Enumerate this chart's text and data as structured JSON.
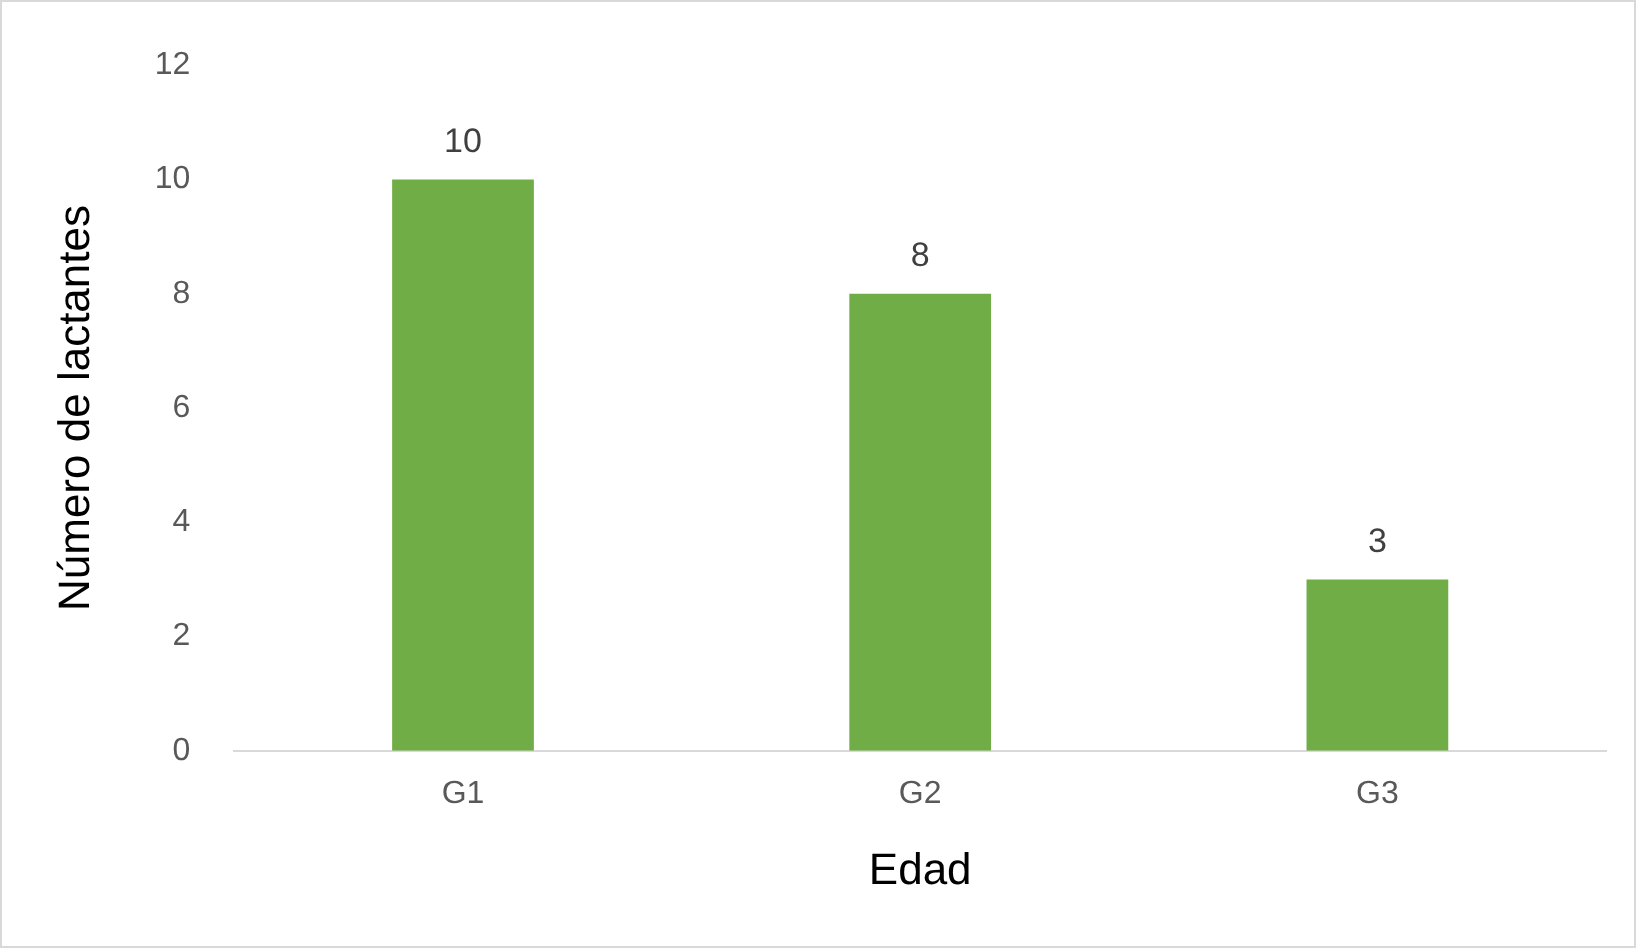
{
  "chart_data": {
    "type": "bar",
    "xlabel": "Edad",
    "ylabel": "Número de lactantes",
    "categories": [
      "G1",
      "G2",
      "G3"
    ],
    "values": [
      10,
      8,
      3
    ],
    "color": "#70ad47",
    "ylim": [
      0,
      12
    ],
    "yticks": [
      0,
      2,
      4,
      6,
      8,
      10,
      12
    ],
    "data_labels": true,
    "grid": false,
    "legend": false
  }
}
